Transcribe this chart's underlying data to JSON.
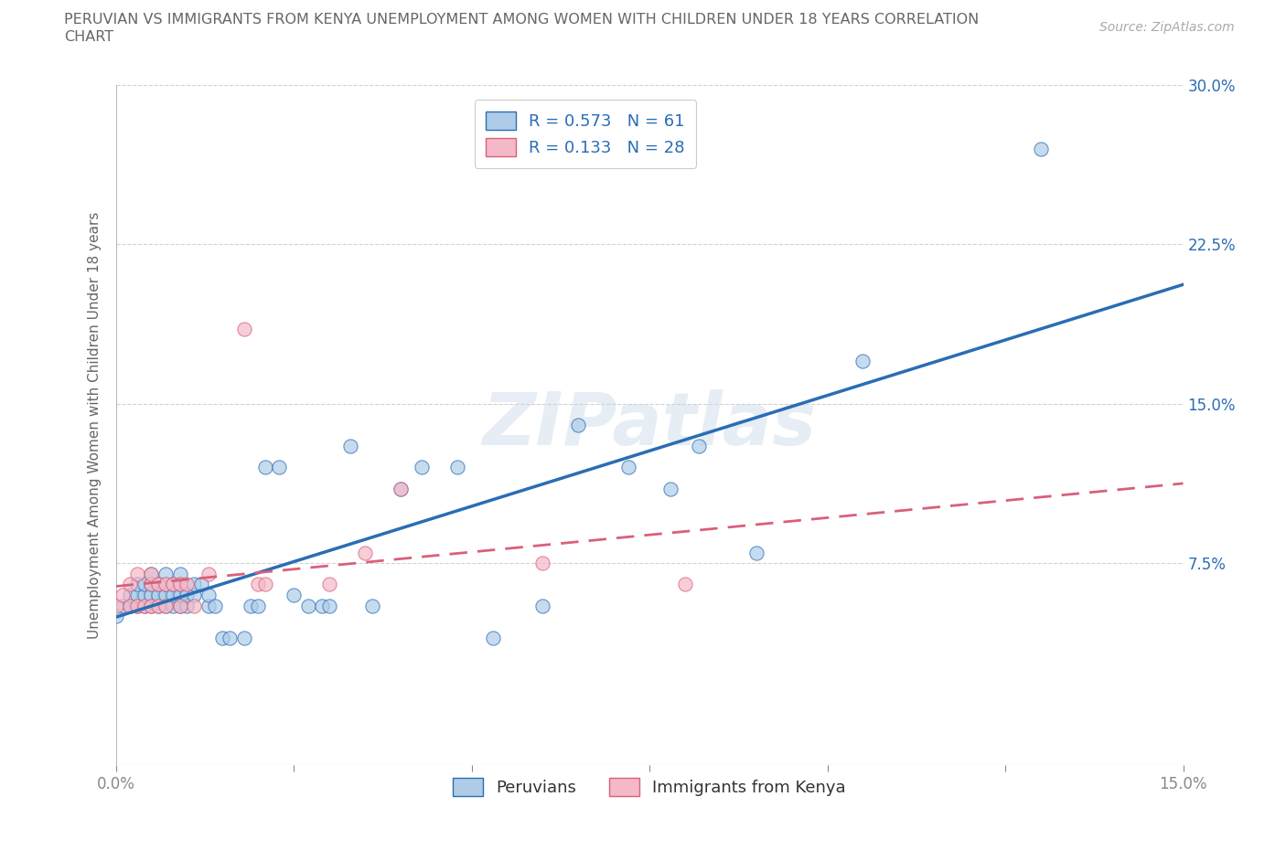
{
  "title_line1": "PERUVIAN VS IMMIGRANTS FROM KENYA UNEMPLOYMENT AMONG WOMEN WITH CHILDREN UNDER 18 YEARS CORRELATION",
  "title_line2": "CHART",
  "source_text": "Source: ZipAtlas.com",
  "ylabel": "Unemployment Among Women with Children Under 18 years",
  "xlim": [
    0.0,
    0.15
  ],
  "ylim": [
    -0.02,
    0.3
  ],
  "xtick_positions": [
    0.0,
    0.025,
    0.05,
    0.075,
    0.1,
    0.125,
    0.15
  ],
  "xtick_labels": [
    "0.0%",
    "",
    "",
    "",
    "",
    "",
    "15.0%"
  ],
  "ytick_positions": [
    0.0,
    0.075,
    0.15,
    0.225,
    0.3
  ],
  "ytick_labels_right": [
    "",
    "7.5%",
    "15.0%",
    "22.5%",
    "30.0%"
  ],
  "legend_label1": "Peruvians",
  "legend_label2": "Immigrants from Kenya",
  "R1": "0.573",
  "N1": "61",
  "R2": "0.133",
  "N2": "28",
  "color1": "#aecce8",
  "color2": "#f5b8c8",
  "line_color1": "#2a6db5",
  "line_color2": "#d9607a",
  "background_color": "#ffffff",
  "watermark_text": "ZIPatlas",
  "grid_color": "#d0d0d0",
  "title_color": "#666666",
  "axis_label_color": "#666666",
  "tick_color": "#888888",
  "right_tick_color": "#2a6db5",
  "peruvian_x": [
    0.0,
    0.001,
    0.002,
    0.002,
    0.003,
    0.003,
    0.003,
    0.004,
    0.004,
    0.004,
    0.005,
    0.005,
    0.005,
    0.005,
    0.006,
    0.006,
    0.006,
    0.007,
    0.007,
    0.007,
    0.007,
    0.008,
    0.008,
    0.008,
    0.009,
    0.009,
    0.009,
    0.009,
    0.01,
    0.01,
    0.011,
    0.011,
    0.012,
    0.013,
    0.013,
    0.014,
    0.015,
    0.016,
    0.018,
    0.019,
    0.02,
    0.021,
    0.023,
    0.025,
    0.027,
    0.029,
    0.03,
    0.033,
    0.036,
    0.04,
    0.043,
    0.048,
    0.053,
    0.06,
    0.065,
    0.072,
    0.078,
    0.082,
    0.09,
    0.105,
    0.13
  ],
  "peruvian_y": [
    0.05,
    0.055,
    0.055,
    0.06,
    0.055,
    0.06,
    0.065,
    0.055,
    0.06,
    0.065,
    0.055,
    0.06,
    0.065,
    0.07,
    0.055,
    0.06,
    0.065,
    0.055,
    0.06,
    0.065,
    0.07,
    0.055,
    0.06,
    0.065,
    0.055,
    0.06,
    0.065,
    0.07,
    0.055,
    0.06,
    0.06,
    0.065,
    0.065,
    0.055,
    0.06,
    0.055,
    0.04,
    0.04,
    0.04,
    0.055,
    0.055,
    0.12,
    0.12,
    0.06,
    0.055,
    0.055,
    0.055,
    0.13,
    0.055,
    0.11,
    0.12,
    0.12,
    0.04,
    0.055,
    0.14,
    0.12,
    0.11,
    0.13,
    0.08,
    0.17,
    0.27
  ],
  "kenya_x": [
    0.0,
    0.001,
    0.002,
    0.002,
    0.003,
    0.003,
    0.004,
    0.005,
    0.005,
    0.005,
    0.006,
    0.006,
    0.007,
    0.007,
    0.008,
    0.009,
    0.009,
    0.01,
    0.011,
    0.013,
    0.018,
    0.02,
    0.021,
    0.03,
    0.035,
    0.04,
    0.06,
    0.08
  ],
  "kenya_y": [
    0.055,
    0.06,
    0.055,
    0.065,
    0.055,
    0.07,
    0.055,
    0.055,
    0.065,
    0.07,
    0.055,
    0.065,
    0.055,
    0.065,
    0.065,
    0.055,
    0.065,
    0.065,
    0.055,
    0.07,
    0.185,
    0.065,
    0.065,
    0.065,
    0.08,
    0.11,
    0.075,
    0.065
  ]
}
